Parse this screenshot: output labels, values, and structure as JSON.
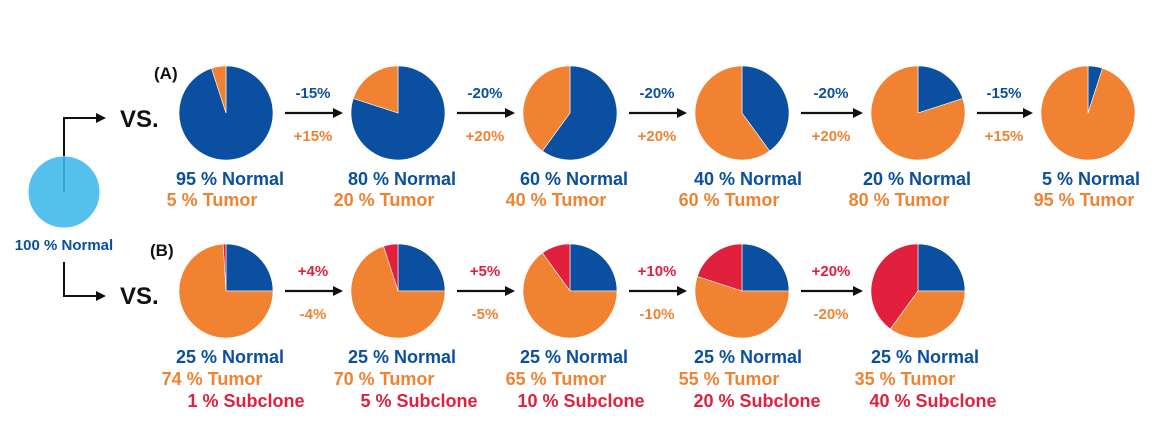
{
  "colors": {
    "normal": "#0a4fa0",
    "tumor": "#f08232",
    "subclone": "#e0203c",
    "root": "#55c1ef",
    "arrow": "#111111"
  },
  "root": {
    "label": "100 % Normal",
    "normal_pct": 100
  },
  "panels": [
    {
      "id": "A",
      "label": "(A)",
      "vs": "VS.",
      "pies": [
        {
          "normal": 95,
          "tumor": 5,
          "subclone": 0,
          "lines": [
            "95 % Normal",
            "5 % Tumor"
          ]
        },
        {
          "normal": 80,
          "tumor": 20,
          "subclone": 0,
          "lines": [
            "80 % Normal",
            "20 % Tumor"
          ]
        },
        {
          "normal": 60,
          "tumor": 40,
          "subclone": 0,
          "lines": [
            "60 % Normal",
            "40 % Tumor"
          ]
        },
        {
          "normal": 40,
          "tumor": 60,
          "subclone": 0,
          "lines": [
            "40 % Normal",
            "60 % Tumor"
          ]
        },
        {
          "normal": 20,
          "tumor": 80,
          "subclone": 0,
          "lines": [
            "20 % Normal",
            "80 % Tumor"
          ]
        },
        {
          "normal": 5,
          "tumor": 95,
          "subclone": 0,
          "lines": [
            "5 % Normal",
            "95 % Tumor"
          ]
        }
      ],
      "transitions": [
        {
          "top": "-15%",
          "bottom": "+15%"
        },
        {
          "top": "-20%",
          "bottom": "+20%"
        },
        {
          "top": "-20%",
          "bottom": "+20%"
        },
        {
          "top": "-20%",
          "bottom": "+20%"
        },
        {
          "top": "-15%",
          "bottom": "+15%"
        }
      ]
    },
    {
      "id": "B",
      "label": "(B)",
      "vs": "VS.",
      "pies": [
        {
          "normal": 25,
          "tumor": 74,
          "subclone": 1,
          "lines": [
            "25 % Normal",
            "74 % Tumor",
            "1 % Subclone"
          ]
        },
        {
          "normal": 25,
          "tumor": 70,
          "subclone": 5,
          "lines": [
            "25 % Normal",
            "70 % Tumor",
            "5 % Subclone"
          ]
        },
        {
          "normal": 25,
          "tumor": 65,
          "subclone": 10,
          "lines": [
            "25 % Normal",
            "65 % Tumor",
            "10 % Subclone"
          ]
        },
        {
          "normal": 25,
          "tumor": 55,
          "subclone": 20,
          "lines": [
            "25 % Normal",
            "55 % Tumor",
            "20 % Subclone"
          ]
        },
        {
          "normal": 25,
          "tumor": 35,
          "subclone": 40,
          "lines": [
            "25 % Normal",
            "35 % Tumor",
            "40 % Subclone"
          ]
        }
      ],
      "transitions": [
        {
          "top": "+4%",
          "bottom": "-4%"
        },
        {
          "top": "+5%",
          "bottom": "-5%"
        },
        {
          "top": "+10%",
          "bottom": "-10%"
        },
        {
          "top": "+20%",
          "bottom": "-20%"
        }
      ]
    }
  ]
}
